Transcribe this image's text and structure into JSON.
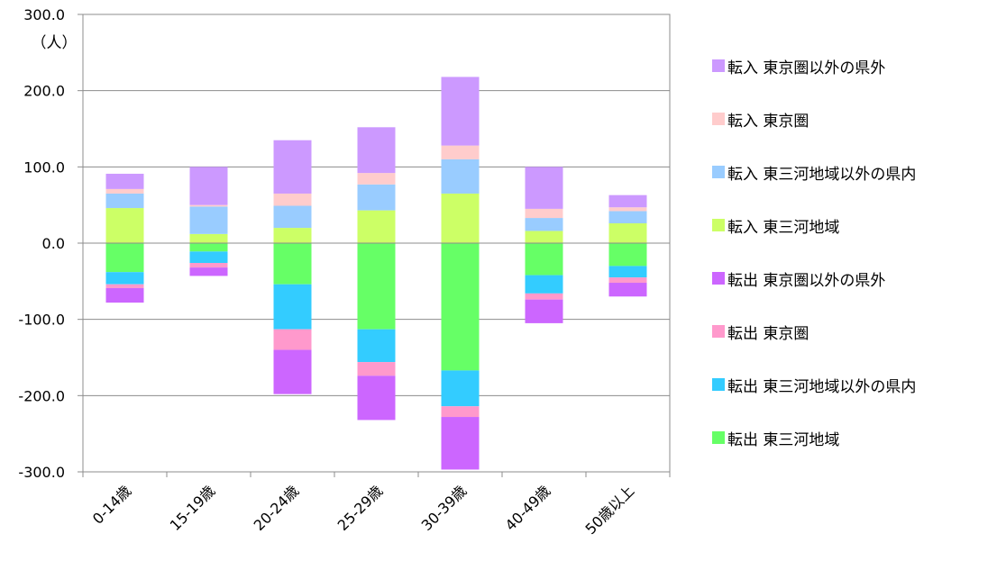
{
  "chart_data": {
    "type": "bar",
    "stacked": true,
    "title": "",
    "xlabel": "",
    "ylabel": "（人）",
    "ylim": [
      -300,
      300
    ],
    "yticks": [
      "300.0",
      "200.0",
      "100.0",
      "0.0",
      "-100.0",
      "-200.0",
      "-300.0"
    ],
    "grid": true,
    "legend_position": "right",
    "categories": [
      "0-14歳",
      "15-19歳",
      "20-24歳",
      "25-29歳",
      "30-39歳",
      "40-49歳",
      "50歳以上"
    ],
    "series": [
      {
        "name": "転入 東京圏以外の県外",
        "color": "#cc99ff",
        "values": [
          20,
          50,
          70,
          60,
          90,
          55,
          16
        ]
      },
      {
        "name": "転入 東京圏",
        "color": "#ffcccc",
        "values": [
          6,
          2,
          16,
          15,
          18,
          12,
          5
        ]
      },
      {
        "name": "転入 東三河地域以外の県内",
        "color": "#99ccff",
        "values": [
          19,
          36,
          29,
          34,
          45,
          17,
          16
        ]
      },
      {
        "name": "転入 東三河地域",
        "color": "#ccff66",
        "values": [
          46,
          12,
          20,
          43,
          65,
          16,
          26
        ]
      },
      {
        "name": "転出 東京圏以外の県外",
        "color": "#cc66ff",
        "values": [
          -19,
          -11,
          -58,
          -58,
          -69,
          -31,
          -18
        ]
      },
      {
        "name": "転出 東京圏",
        "color": "#ff99cc",
        "values": [
          -5,
          -6,
          -27,
          -18,
          -14,
          -8,
          -7
        ]
      },
      {
        "name": "転出 東三河地域以外の県内",
        "color": "#33ccff",
        "values": [
          -16,
          -15,
          -59,
          -43,
          -47,
          -24,
          -15
        ]
      },
      {
        "name": "転出 東三河地域",
        "color": "#66ff66",
        "values": [
          -38,
          -11,
          -54,
          -113,
          -167,
          -42,
          -30
        ]
      }
    ]
  }
}
